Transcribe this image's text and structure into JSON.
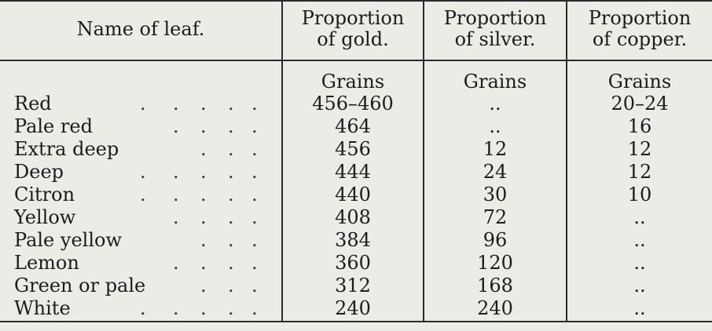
{
  "headers": {
    "name": "Name of leaf.",
    "gold": [
      "Proportion",
      "of gold."
    ],
    "silver": [
      "Proportion",
      "of silver."
    ],
    "copper": [
      "Proportion",
      "of copper."
    ]
  },
  "units": {
    "gold": "Grains",
    "silver": "Grains",
    "copper": "Grains"
  },
  "rows": [
    {
      "name": "Red",
      "gold": "456–460",
      "silver": "..",
      "copper": "20–24",
      "dots": 5
    },
    {
      "name": "Pale red",
      "gold": "464",
      "silver": "..",
      "copper": "16",
      "dots": 4
    },
    {
      "name": "Extra deep",
      "gold": "456",
      "silver": "12",
      "copper": "12",
      "dots": 3
    },
    {
      "name": "Deep",
      "gold": "444",
      "silver": "24",
      "copper": "12",
      "dots": 5
    },
    {
      "name": "Citron",
      "gold": "440",
      "silver": "30",
      "copper": "10",
      "dots": 5
    },
    {
      "name": "Yellow",
      "gold": "408",
      "silver": "72",
      "copper": "..",
      "dots": 4
    },
    {
      "name": "Pale yellow",
      "gold": "384",
      "silver": "96",
      "copper": "..",
      "dots": 3
    },
    {
      "name": "Lemon",
      "gold": "360",
      "silver": "120",
      "copper": "..",
      "dots": 4
    },
    {
      "name": "Green or pale",
      "gold": "312",
      "silver": "168",
      "copper": "..",
      "dots": 3
    },
    {
      "name": "White",
      "gold": "240",
      "silver": "240",
      "copper": "..",
      "dots": 5
    }
  ]
}
